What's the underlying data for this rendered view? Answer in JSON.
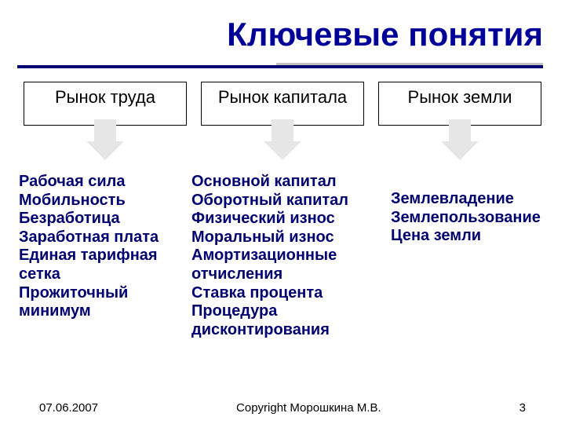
{
  "title": "Ключевые понятия",
  "title_color": "#000099",
  "title_fontsize": 42,
  "divider": {
    "grey_color": "#c0c0c0",
    "navy_color": "#000070"
  },
  "boxes": [
    {
      "label": "Рынок труда"
    },
    {
      "label": "Рынок капитала"
    },
    {
      "label": "Рынок земли"
    }
  ],
  "arrow_color": "#e6e6e6",
  "columns": [
    {
      "color": "#000070",
      "items": [
        "Рабочая сила",
        "Мобильность",
        "Безработица",
        "Заработная плата",
        "Единая тарифная сетка",
        "Прожиточный минимум"
      ]
    },
    {
      "color": "#000070",
      "items": [
        "Основной капитал",
        "Оборотный капитал",
        "Физический износ",
        "Моральный износ",
        "Амортизационные отчисления",
        "Ставка процента",
        "Процедура дисконтирования"
      ]
    },
    {
      "color": "#000070",
      "items": [
        "Землевладение",
        "Землепользование",
        "Цена земли"
      ]
    }
  ],
  "footer": {
    "date": "07.06.2007",
    "copyright": "Copyright Морошкина М.В.",
    "page": "3"
  },
  "body_fontsize": 20
}
